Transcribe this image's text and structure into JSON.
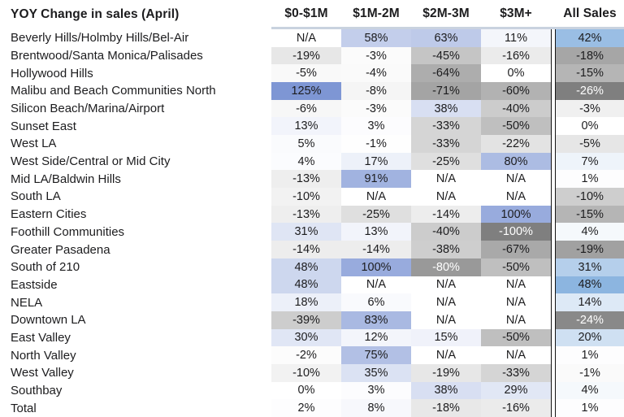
{
  "chart_data": {
    "type": "heatmap",
    "title": "YOY Change in sales (April)",
    "columns": [
      "$0-$1M",
      "$1M-2M",
      "$2M-3M",
      "$3M+",
      "All Sales"
    ],
    "value_unit": "%",
    "na_label": "N/A",
    "rows": [
      "Beverly Hills/Holmby Hills/Bel-Air",
      "Brentwood/Santa Monica/Palisades",
      "Hollywood Hills",
      "Malibu and Beach Communities North",
      "Silicon Beach/Marina/Airport",
      "Sunset East",
      "West LA",
      "West Side/Central or Mid City",
      "Mid LA/Baldwin Hills",
      "South LA",
      "Eastern Cities",
      "Foothill Communities",
      "Greater Pasadena",
      "South of 210",
      "Eastside",
      "NELA",
      "Downtown LA",
      "East Valley",
      "North Valley",
      "West Valley",
      "Southbay",
      "Total"
    ],
    "values": [
      [
        null,
        58,
        63,
        11,
        42
      ],
      [
        -19,
        -3,
        -45,
        -16,
        -18
      ],
      [
        -5,
        -4,
        -64,
        0,
        -15
      ],
      [
        125,
        -8,
        -71,
        -60,
        -26
      ],
      [
        -6,
        -3,
        38,
        -40,
        -3
      ],
      [
        13,
        3,
        -33,
        -50,
        0
      ],
      [
        5,
        -1,
        -33,
        -22,
        -5
      ],
      [
        4,
        17,
        -25,
        80,
        7
      ],
      [
        -13,
        91,
        null,
        null,
        1
      ],
      [
        -10,
        null,
        null,
        null,
        -10
      ],
      [
        -13,
        -25,
        -14,
        100,
        -15
      ],
      [
        31,
        13,
        -40,
        -100,
        4
      ],
      [
        -14,
        -14,
        -38,
        -67,
        -19
      ],
      [
        48,
        100,
        -80,
        -50,
        31
      ],
      [
        48,
        null,
        null,
        null,
        48
      ],
      [
        18,
        6,
        null,
        null,
        14
      ],
      [
        -39,
        83,
        null,
        null,
        -24
      ],
      [
        30,
        12,
        15,
        -50,
        20
      ],
      [
        -2,
        75,
        null,
        null,
        1
      ],
      [
        -10,
        35,
        -19,
        -33,
        -1
      ],
      [
        0,
        3,
        38,
        29,
        4
      ],
      [
        2,
        8,
        -18,
        -16,
        1
      ]
    ],
    "color_scales": {
      "inner": {
        "min": -100,
        "max": 125,
        "neg": "#7f7f7f",
        "pos": "#7e96d4",
        "mid": "#ffffff"
      },
      "all_sales": {
        "min": -26,
        "max": 48,
        "neg": "#7f7f7f",
        "pos": "#8cb5e0",
        "mid": "#ffffff"
      }
    },
    "style": {
      "text_color": "#1c1c1e",
      "text_color_on_dark": "#ffffff",
      "header_underline_color": "#c9d2df",
      "separator_color": "#141414",
      "white_text_threshold": 0.75
    }
  }
}
